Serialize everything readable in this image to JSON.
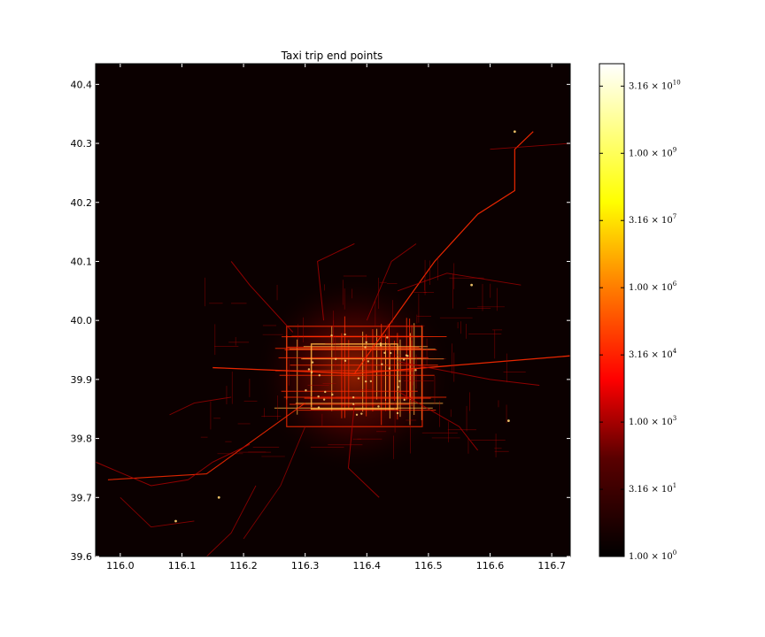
{
  "chart_data": {
    "type": "heatmap",
    "title": "Taxi trip end points",
    "xlabel": "",
    "ylabel": "",
    "xlim": [
      115.96,
      116.73
    ],
    "ylim": [
      39.6,
      40.435
    ],
    "x_ticks": [
      116.0,
      116.1,
      116.2,
      116.3,
      116.4,
      116.5,
      116.6,
      116.7
    ],
    "y_ticks": [
      39.6,
      39.7,
      39.8,
      39.9,
      40.0,
      40.1,
      40.2,
      40.3,
      40.4
    ],
    "x_tick_labels": [
      "116.0",
      "116.1",
      "116.2",
      "116.3",
      "116.4",
      "116.5",
      "116.6",
      "116.7"
    ],
    "y_tick_labels": [
      "39.6",
      "39.7",
      "39.8",
      "39.9",
      "40.0",
      "40.1",
      "40.2",
      "40.3",
      "40.4"
    ],
    "grid": false,
    "colormap": "hot",
    "color_scale": "log",
    "colorbar": {
      "min": 1,
      "max": 100000000000,
      "ticks": [
        1,
        31.6,
        1000,
        31600,
        1000000,
        31600000,
        1000000000,
        31600000000
      ],
      "tick_mantissas": [
        "1.00",
        "3.16",
        "1.00",
        "3.16",
        "1.00",
        "3.16",
        "1.00",
        "3.16"
      ],
      "tick_exponents": [
        "0",
        "1",
        "3",
        "4",
        "6",
        "7",
        "9",
        "10"
      ],
      "colors": [
        "#000000",
        "#0b0000",
        "#ff0000",
        "#ff6000",
        "#ffff00",
        "#ffffff"
      ]
    },
    "background_color": "#0b0000",
    "road_colors": {
      "low": "#b00000",
      "mid": "#ff2a00",
      "high": "#ffb040"
    },
    "layout_note_ignored": ""
  }
}
